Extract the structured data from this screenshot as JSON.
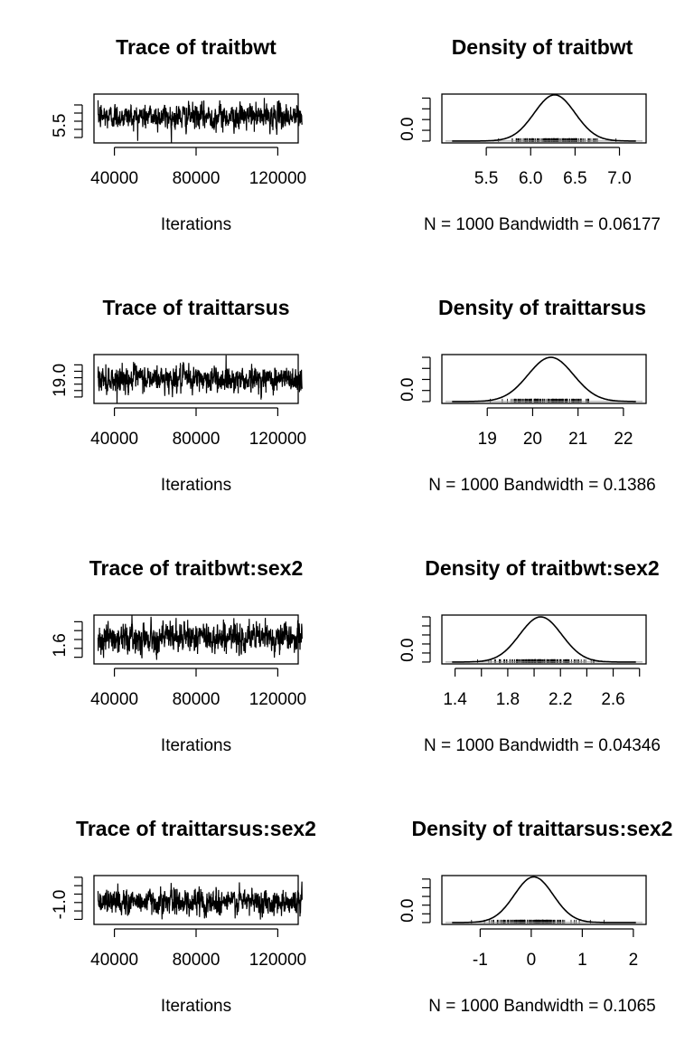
{
  "chart_data": [
    {
      "type": "line",
      "title": "Trace of traitbwt",
      "xlabel": "Iterations",
      "ylabel": "",
      "x_range": [
        30000,
        130000
      ],
      "x_ticks": [
        40000,
        80000,
        120000
      ],
      "x_tick_labels": [
        "40000",
        "80000",
        "120000"
      ],
      "y_range": [
        5.3,
        7.1
      ],
      "y_ticks": [
        5.5,
        5.8,
        6.1,
        6.4,
        6.7
      ],
      "y_tick_labels": [
        "5.5",
        "",
        "",
        "",
        ""
      ],
      "series": [
        {
          "mean": 6.27,
          "sd": 0.23,
          "n": 1000
        }
      ]
    },
    {
      "type": "area",
      "title": "Density of traitbwt",
      "xlabel": "N = 1000   Bandwidth = 0.06177",
      "x_range": [
        5.0,
        7.3
      ],
      "x_ticks": [
        5.5,
        6.0,
        6.5,
        7.0
      ],
      "x_tick_labels": [
        "5.5",
        "6.0",
        "6.5",
        "7.0"
      ],
      "y_ticks": [
        0.0,
        0.4,
        0.8,
        1.2,
        1.6
      ],
      "y_tick_labels": [
        "0.0",
        "",
        "",
        "",
        ""
      ],
      "y_range": [
        0,
        1.75
      ],
      "series": [
        {
          "mean": 6.27,
          "sd": 0.23,
          "n": 1000,
          "peak_density": 1.72
        }
      ]
    },
    {
      "type": "line",
      "title": "Trace of traittarsus",
      "xlabel": "Iterations",
      "ylabel": "",
      "x_range": [
        30000,
        130000
      ],
      "x_ticks": [
        40000,
        80000,
        120000
      ],
      "x_tick_labels": [
        "40000",
        "80000",
        "120000"
      ],
      "y_range": [
        18.5,
        22.3
      ],
      "y_ticks": [
        19.0,
        19.5,
        20.0,
        20.5,
        21.0,
        21.5
      ],
      "y_tick_labels": [
        "19.0",
        "",
        "",
        "",
        "",
        ""
      ],
      "series": [
        {
          "mean": 20.4,
          "sd": 0.5,
          "n": 1000
        }
      ]
    },
    {
      "type": "area",
      "title": "Density of traittarsus",
      "xlabel": "N = 1000   Bandwidth = 0.1386",
      "x_range": [
        18.0,
        22.5
      ],
      "x_ticks": [
        19,
        20,
        21,
        22
      ],
      "x_tick_labels": [
        "19",
        "20",
        "21",
        "22"
      ],
      "y_ticks": [
        0.0,
        0.2,
        0.4,
        0.6,
        0.8
      ],
      "y_tick_labels": [
        "0.0",
        "",
        "",
        "",
        ""
      ],
      "y_range": [
        0,
        0.85
      ],
      "series": [
        {
          "mean": 20.4,
          "sd": 0.5,
          "n": 1000,
          "peak_density": 0.8
        }
      ]
    },
    {
      "type": "line",
      "title": "Trace of traitbwt:sex2",
      "xlabel": "Iterations",
      "ylabel": "",
      "x_range": [
        30000,
        130000
      ],
      "x_ticks": [
        40000,
        80000,
        120000
      ],
      "x_tick_labels": [
        "40000",
        "80000",
        "120000"
      ],
      "y_range": [
        1.45,
        2.55
      ],
      "y_ticks": [
        1.6,
        1.8,
        2.0,
        2.2,
        2.4
      ],
      "y_tick_labels": [
        "1.6",
        "",
        "",
        "",
        ""
      ],
      "series": [
        {
          "mean": 2.05,
          "sd": 0.16,
          "n": 1000
        }
      ]
    },
    {
      "type": "area",
      "title": "Density of traitbwt:sex2",
      "xlabel": "N = 1000   Bandwidth = 0.04346",
      "x_range": [
        1.3,
        2.85
      ],
      "x_ticks": [
        1.4,
        1.6,
        1.8,
        2.0,
        2.2,
        2.4,
        2.6,
        2.8
      ],
      "x_tick_labels": [
        "1.4",
        "",
        "1.8",
        "",
        "2.2",
        "",
        "2.6",
        ""
      ],
      "y_ticks": [
        0.0,
        0.5,
        1.0,
        1.5,
        2.0,
        2.5
      ],
      "y_tick_labels": [
        "0.0",
        "",
        "",
        "",
        "",
        ""
      ],
      "y_range": [
        0,
        2.6
      ],
      "series": [
        {
          "mean": 2.05,
          "sd": 0.16,
          "n": 1000,
          "peak_density": 2.5
        }
      ]
    },
    {
      "type": "line",
      "title": "Trace of traittarsus:sex2",
      "xlabel": "Iterations",
      "ylabel": "",
      "x_range": [
        30000,
        130000
      ],
      "x_ticks": [
        40000,
        80000,
        120000
      ],
      "x_tick_labels": [
        "40000",
        "80000",
        "120000"
      ],
      "y_range": [
        -1.3,
        1.6
      ],
      "y_ticks": [
        -1.0,
        -0.5,
        0.0,
        0.5,
        1.0,
        1.5
      ],
      "y_tick_labels": [
        "-1.0",
        "",
        "",
        "",
        "",
        ""
      ],
      "series": [
        {
          "mean": 0.05,
          "sd": 0.38,
          "n": 1000
        }
      ]
    },
    {
      "type": "area",
      "title": "Density of traittarsus:sex2",
      "xlabel": "N = 1000   Bandwidth = 0.1065",
      "x_range": [
        -1.75,
        2.25
      ],
      "x_ticks": [
        -1,
        0,
        1,
        2
      ],
      "x_tick_labels": [
        "-1",
        "0",
        "1",
        "2"
      ],
      "y_ticks": [
        0.0,
        0.2,
        0.4,
        0.6,
        0.8,
        1.0
      ],
      "y_tick_labels": [
        "0.0",
        "",
        "",
        "",
        "",
        ""
      ],
      "y_range": [
        0,
        1.08
      ],
      "series": [
        {
          "mean": 0.05,
          "sd": 0.38,
          "n": 1000,
          "peak_density": 1.05
        }
      ]
    }
  ]
}
